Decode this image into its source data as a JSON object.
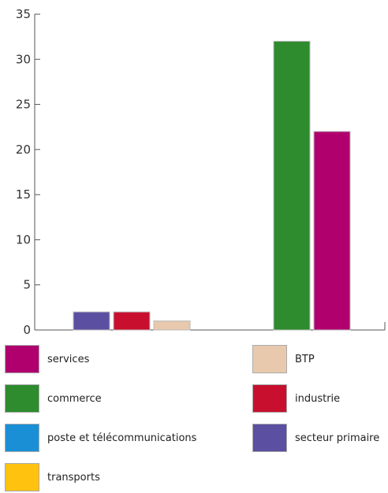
{
  "chart_data": {
    "type": "bar",
    "title": "",
    "xlabel": "",
    "ylabel": "",
    "ylim": [
      0,
      35
    ],
    "yticks": [
      0,
      5,
      10,
      15,
      20,
      25,
      30,
      35
    ],
    "grid": false,
    "legend_position": "bottom",
    "series": [
      {
        "name": "services",
        "color": "#b0006e"
      },
      {
        "name": "BTP",
        "color": "#e8c9ad"
      },
      {
        "name": "commerce",
        "color": "#2e8b2e"
      },
      {
        "name": "industrie",
        "color": "#c8102e"
      },
      {
        "name": "poste et télécommunications",
        "color": "#1b8fd6"
      },
      {
        "name": "secteur primaire",
        "color": "#5a4fa0"
      },
      {
        "name": "transports",
        "color": "#ffc20e"
      }
    ],
    "groups": [
      {
        "bars": [
          {
            "series": "secteur primaire",
            "value": 2
          },
          {
            "series": "industrie",
            "value": 2
          },
          {
            "series": "BTP",
            "value": 1
          }
        ]
      },
      {
        "bars": [
          {
            "series": "commerce",
            "value": 32
          },
          {
            "series": "services",
            "value": 22
          }
        ]
      }
    ]
  }
}
